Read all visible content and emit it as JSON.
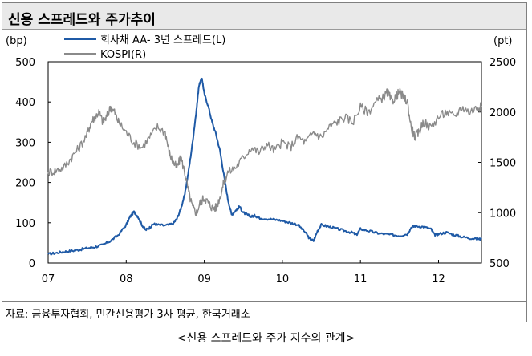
{
  "title": "신용 스프레드와 주가추이",
  "source": "자료: 금융투자협회, 민간신용평가 3사 평균, 한국거래소",
  "caption": "<신용 스프레드와 주가 지수의 관계>",
  "colors": {
    "spread": "#1f5aa6",
    "kospi": "#8a8a8a",
    "axis": "#000000"
  },
  "chart_data": {
    "type": "line",
    "title": "신용 스프레드와 주가추이",
    "left_unit": "(bp)",
    "right_unit": "(pt)",
    "x_ticks": [
      "07",
      "08",
      "09",
      "10",
      "11",
      "12"
    ],
    "x_range": [
      2007.0,
      2012.55
    ],
    "y_left": {
      "range": [
        0,
        500
      ],
      "ticks": [
        "0",
        "100",
        "200",
        "300",
        "400",
        "500"
      ]
    },
    "y_right": {
      "range": [
        500,
        2500
      ],
      "ticks": [
        "500",
        "1000",
        "1500",
        "2000",
        "2500"
      ]
    },
    "legend_position": "top-left",
    "series": [
      {
        "name": "회사채 AA- 3년 스프레드(L)",
        "axis": "left",
        "x": [
          2007.0,
          2007.1,
          2007.2,
          2007.3,
          2007.4,
          2007.5,
          2007.6,
          2007.7,
          2007.8,
          2007.9,
          2008.0,
          2008.05,
          2008.1,
          2008.15,
          2008.2,
          2008.25,
          2008.3,
          2008.35,
          2008.4,
          2008.5,
          2008.6,
          2008.65,
          2008.7,
          2008.75,
          2008.8,
          2008.85,
          2008.9,
          2008.93,
          2008.97,
          2009.0,
          2009.05,
          2009.1,
          2009.15,
          2009.2,
          2009.25,
          2009.3,
          2009.35,
          2009.4,
          2009.45,
          2009.5,
          2009.55,
          2009.6,
          2009.65,
          2009.7,
          2009.8,
          2009.9,
          2010.0,
          2010.1,
          2010.2,
          2010.3,
          2010.35,
          2010.4,
          2010.45,
          2010.5,
          2010.6,
          2010.7,
          2010.8,
          2010.9,
          2010.95,
          2011.0,
          2011.1,
          2011.2,
          2011.3,
          2011.4,
          2011.5,
          2011.6,
          2011.65,
          2011.7,
          2011.8,
          2011.9,
          2011.95,
          2012.0,
          2012.1,
          2012.2,
          2012.3,
          2012.4,
          2012.5,
          2012.55
        ],
        "values": [
          22,
          25,
          28,
          30,
          33,
          37,
          40,
          45,
          55,
          70,
          95,
          115,
          127,
          115,
          95,
          82,
          88,
          97,
          95,
          93,
          98,
          110,
          135,
          170,
          230,
          300,
          380,
          440,
          460,
          420,
          390,
          350,
          320,
          280,
          220,
          160,
          120,
          130,
          140,
          125,
          120,
          115,
          118,
          112,
          110,
          108,
          105,
          100,
          95,
          75,
          60,
          55,
          80,
          95,
          90,
          85,
          80,
          75,
          70,
          85,
          80,
          75,
          72,
          70,
          68,
          72,
          88,
          92,
          90,
          85,
          70,
          72,
          76,
          70,
          65,
          62,
          60,
          59
        ]
      },
      {
        "name": "KOSPI(R)",
        "axis": "right",
        "x": [
          2007.0,
          2007.1,
          2007.2,
          2007.3,
          2007.4,
          2007.5,
          2007.55,
          2007.6,
          2007.65,
          2007.7,
          2007.75,
          2007.8,
          2007.85,
          2007.9,
          2008.0,
          2008.1,
          2008.2,
          2008.3,
          2008.4,
          2008.5,
          2008.55,
          2008.6,
          2008.65,
          2008.7,
          2008.75,
          2008.8,
          2008.85,
          2008.9,
          2008.95,
          2009.0,
          2009.05,
          2009.1,
          2009.15,
          2009.2,
          2009.25,
          2009.3,
          2009.4,
          2009.5,
          2009.6,
          2009.7,
          2009.8,
          2009.9,
          2010.0,
          2010.1,
          2010.2,
          2010.3,
          2010.4,
          2010.5,
          2010.6,
          2010.7,
          2010.8,
          2010.9,
          2011.0,
          2011.1,
          2011.2,
          2011.3,
          2011.35,
          2011.4,
          2011.45,
          2011.5,
          2011.55,
          2011.6,
          2011.65,
          2011.7,
          2011.75,
          2011.8,
          2011.9,
          2012.0,
          2012.1,
          2012.2,
          2012.3,
          2012.4,
          2012.5,
          2012.55
        ],
        "values": [
          1400,
          1420,
          1450,
          1550,
          1650,
          1780,
          1900,
          1950,
          2000,
          1900,
          1950,
          2050,
          2000,
          1900,
          1800,
          1700,
          1650,
          1750,
          1850,
          1800,
          1600,
          1500,
          1450,
          1550,
          1400,
          1200,
          1050,
          1000,
          1100,
          1150,
          1100,
          1050,
          1050,
          1150,
          1300,
          1400,
          1450,
          1550,
          1650,
          1600,
          1680,
          1620,
          1700,
          1650,
          1750,
          1700,
          1800,
          1750,
          1850,
          1900,
          1950,
          1900,
          2050,
          2000,
          2100,
          2150,
          2200,
          2100,
          2150,
          2200,
          2150,
          2100,
          1850,
          1750,
          1800,
          1900,
          1850,
          1950,
          2000,
          1950,
          2050,
          2000,
          2050,
          2050
        ]
      }
    ]
  }
}
